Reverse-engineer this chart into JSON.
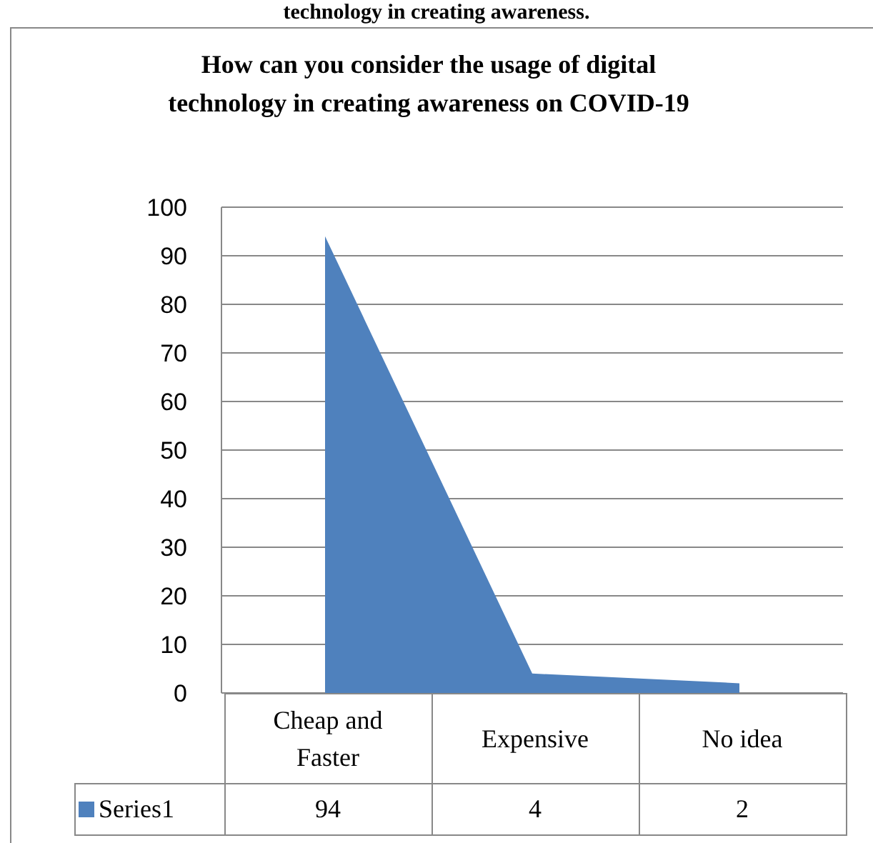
{
  "chart_data": {
    "type": "area",
    "title": "How can you consider the usage of digital technology in creating awareness on COVID-19",
    "annotations": [
      "technology in creating awareness."
    ],
    "categories": [
      "Cheap and Faster",
      "Expensive",
      "No idea"
    ],
    "series": [
      {
        "name": "Series1",
        "color": "#4f81bd",
        "values": [
          94,
          4,
          2
        ]
      }
    ],
    "ylim": [
      0,
      100
    ],
    "yticks": [
      0,
      10,
      20,
      30,
      40,
      50,
      60,
      70,
      80,
      90,
      100
    ],
    "grid": "y",
    "legend": "bottom",
    "data_labels": true
  }
}
